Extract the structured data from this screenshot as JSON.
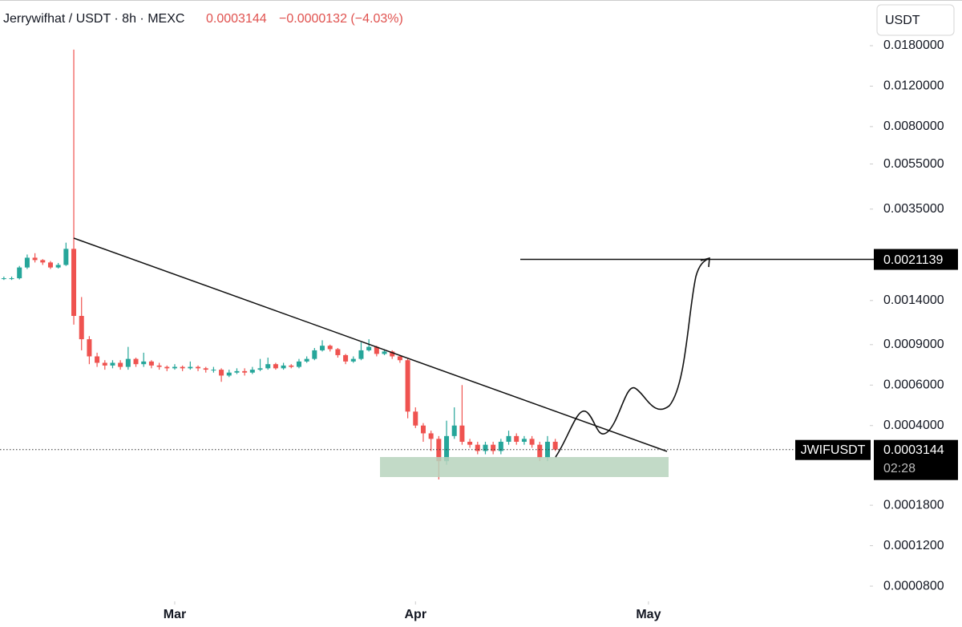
{
  "header": {
    "title": "Jerrywifhat / USDT · 8h · MEXC",
    "change": "−0.0000132 (−4.03%)",
    "currency": "USDT"
  },
  "chart_data": {
    "type": "candlestick",
    "log_scale": true,
    "up_color": "#26a69a",
    "down_color": "#ef5350",
    "categories": [
      null,
      null,
      null,
      null,
      null,
      null,
      null,
      null,
      null,
      null,
      null,
      null,
      null,
      null,
      null,
      null,
      null,
      null,
      null,
      null,
      null,
      null,
      null,
      null,
      null,
      null,
      null,
      null,
      null,
      null,
      null,
      null,
      null,
      null,
      null,
      null,
      null,
      null,
      null,
      null,
      null,
      null,
      null,
      null,
      null,
      null,
      null,
      null,
      null,
      null,
      null,
      null,
      null,
      null,
      null,
      null,
      null,
      null,
      null,
      null,
      null,
      null,
      null,
      null,
      null,
      null,
      null,
      null,
      null,
      null,
      null,
      null
    ],
    "open": [
      0.00175,
      0.00175,
      0.00175,
      0.00195,
      0.00215,
      0.0021,
      0.00205,
      0.00195,
      0.002,
      0.00235,
      0.0012,
      0.00095,
      0.0008,
      0.00075,
      0.00073,
      0.00075,
      0.00072,
      0.00078,
      0.00074,
      0.00076,
      0.00073,
      0.00072,
      0.00071,
      0.00072,
      0.00071,
      0.00072,
      0.00071,
      0.0007,
      0.0007,
      0.00066,
      0.00068,
      0.00069,
      0.00068,
      0.0007,
      0.00071,
      0.00074,
      0.00071,
      0.00073,
      0.00072,
      0.00076,
      0.00078,
      0.00085,
      0.00089,
      0.00086,
      0.00081,
      0.00076,
      0.00078,
      0.00085,
      0.00088,
      0.00082,
      0.00084,
      0.0008,
      0.00077,
      0.00046,
      0.0004,
      0.00037,
      0.00035,
      0.00028,
      0.00036,
      0.0004,
      0.00034,
      0.00033,
      0.00031,
      0.00033,
      0.00031,
      0.00034,
      0.00036,
      0.00034,
      0.00035,
      0.00033,
      0.00029,
      0.00034
    ],
    "high": [
      0.00178,
      0.00178,
      0.00198,
      0.00222,
      0.00225,
      0.00212,
      0.00208,
      0.00204,
      0.0025,
      0.0173,
      0.00145,
      0.00098,
      0.00083,
      0.00077,
      0.00077,
      0.00077,
      0.00088,
      0.00079,
      0.00083,
      0.00077,
      0.00075,
      0.00073,
      0.00074,
      0.00073,
      0.00076,
      0.00073,
      0.00072,
      0.00072,
      0.00071,
      0.0007,
      0.00071,
      0.00071,
      0.00072,
      0.00078,
      0.00079,
      0.00075,
      0.00075,
      0.00074,
      0.00078,
      0.0008,
      0.00087,
      0.00094,
      0.0009,
      0.00087,
      0.00082,
      0.0008,
      0.00092,
      0.00095,
      0.00089,
      0.00086,
      0.00085,
      0.00081,
      0.00078,
      0.00048,
      0.00041,
      0.00038,
      0.00036,
      0.00042,
      0.00048,
      0.0006,
      0.00035,
      0.00034,
      0.00034,
      0.00034,
      0.00035,
      0.00038,
      0.00037,
      0.00036,
      0.00036,
      0.00034,
      0.00036,
      0.00035
    ],
    "low": [
      0.00172,
      0.00172,
      0.00173,
      0.00192,
      0.00205,
      0.002,
      0.00192,
      0.00193,
      0.00198,
      0.0011,
      0.00085,
      0.00074,
      0.00072,
      0.0007,
      0.00071,
      0.0007,
      0.0007,
      0.00072,
      0.00072,
      0.00071,
      0.0007,
      0.00069,
      0.0007,
      0.00069,
      0.0007,
      0.00069,
      0.00068,
      0.00068,
      0.00062,
      0.00065,
      0.00067,
      0.00066,
      0.00067,
      0.00069,
      0.0007,
      0.0007,
      0.0007,
      0.00071,
      0.00071,
      0.00075,
      0.00077,
      0.00084,
      0.00084,
      0.00079,
      0.00074,
      0.00075,
      0.00077,
      0.00084,
      0.0008,
      0.00081,
      0.00078,
      0.00075,
      0.00043,
      0.00039,
      0.00034,
      0.00031,
      0.000233,
      0.00027,
      0.00035,
      0.00033,
      0.00032,
      0.0003,
      0.0003,
      0.0003,
      0.0003,
      0.00033,
      0.00033,
      0.00033,
      0.00032,
      0.00028,
      0.00028,
      0.00031
    ],
    "close": [
      0.00175,
      0.00175,
      0.00195,
      0.00215,
      0.0021,
      0.00205,
      0.00195,
      0.002,
      0.00235,
      0.0012,
      0.00095,
      0.0008,
      0.00075,
      0.00073,
      0.00075,
      0.00072,
      0.00078,
      0.00074,
      0.00076,
      0.00073,
      0.00072,
      0.00071,
      0.00072,
      0.00071,
      0.00072,
      0.00071,
      0.0007,
      0.0007,
      0.00066,
      0.00068,
      0.00069,
      0.00068,
      0.0007,
      0.00071,
      0.00074,
      0.00071,
      0.00073,
      0.00072,
      0.00076,
      0.00078,
      0.00085,
      0.00089,
      0.00086,
      0.00081,
      0.00076,
      0.00078,
      0.00085,
      0.00088,
      0.00082,
      0.00084,
      0.0008,
      0.00077,
      0.00046,
      0.0004,
      0.00037,
      0.00035,
      0.00028,
      0.00036,
      0.0004,
      0.00034,
      0.00033,
      0.00031,
      0.00033,
      0.00031,
      0.00034,
      0.00036,
      0.00034,
      0.00035,
      0.00033,
      0.00029,
      0.00034,
      0.0003144
    ],
    "xlim": [
      -0.5,
      111.5
    ],
    "xticks": [
      {
        "value": 22,
        "label": "Mar"
      },
      {
        "value": 53,
        "label": "Apr"
      },
      {
        "value": 83,
        "label": "May"
      }
    ],
    "ylim": [
      6.87e-05,
      0.02845
    ],
    "yticks": [
      {
        "value": 0.018,
        "label": "0.0180000"
      },
      {
        "value": 0.012,
        "label": "0.0120000"
      },
      {
        "value": 0.008,
        "label": "0.0080000"
      },
      {
        "value": 0.0055,
        "label": "0.0055000"
      },
      {
        "value": 0.0035,
        "label": "0.0035000"
      },
      {
        "value": 0.0014,
        "label": "0.0014000"
      },
      {
        "value": 0.0009,
        "label": "0.0009000"
      },
      {
        "value": 0.0006,
        "label": "0.0006000"
      },
      {
        "value": 0.0004,
        "label": "0.0004000"
      },
      {
        "value": 0.00018,
        "label": "0.0001800"
      },
      {
        "value": 0.00012,
        "label": "0.0001200"
      },
      {
        "value": 8e-05,
        "label": "0.0000800"
      }
    ],
    "last_price": 0.0003144,
    "symbol": "JWIFUSDT",
    "countdown": "02:28",
    "target": 0.0021139
  }
}
